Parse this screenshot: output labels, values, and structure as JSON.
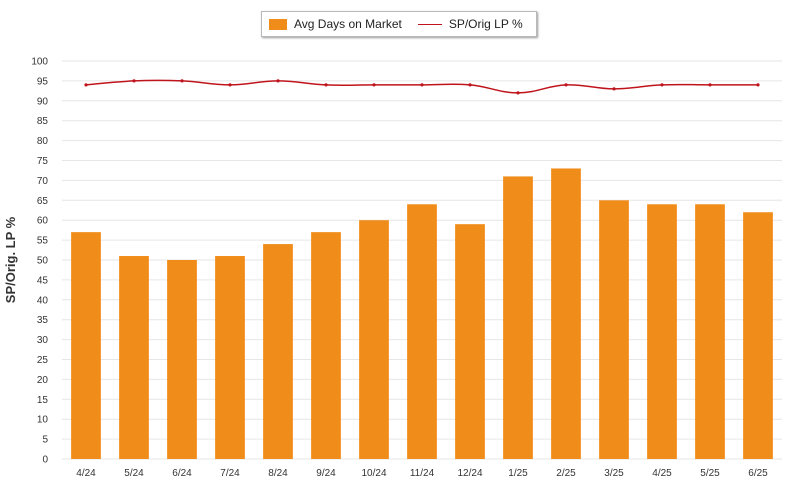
{
  "chart_data": {
    "type": "bar",
    "categories": [
      "4/24",
      "5/24",
      "6/24",
      "7/24",
      "8/24",
      "9/24",
      "10/24",
      "11/24",
      "12/24",
      "1/25",
      "2/25",
      "3/25",
      "4/25",
      "5/25",
      "6/25"
    ],
    "series": [
      {
        "name": "Avg Days on Market",
        "type": "bar",
        "color": "#f08c1a",
        "values": [
          57,
          51,
          50,
          51,
          54,
          57,
          60,
          64,
          59,
          71,
          73,
          65,
          64,
          64,
          62
        ]
      },
      {
        "name": "SP/Orig LP %",
        "type": "line",
        "color": "#c0141c",
        "values": [
          94,
          95,
          95,
          94,
          95,
          94,
          94,
          94,
          94,
          92,
          94,
          93,
          94,
          94,
          94
        ]
      }
    ],
    "ylabel": "SP/Orig. LP %",
    "ylim": [
      0,
      100
    ],
    "yticks": [
      "0",
      "5",
      "10",
      "15",
      "20",
      "25",
      "30",
      "35",
      "40",
      "45",
      "50",
      "55",
      "60",
      "65",
      "70",
      "75",
      "80",
      "85",
      "90",
      "95",
      "100"
    ],
    "grid": true,
    "legend": "top-center"
  }
}
